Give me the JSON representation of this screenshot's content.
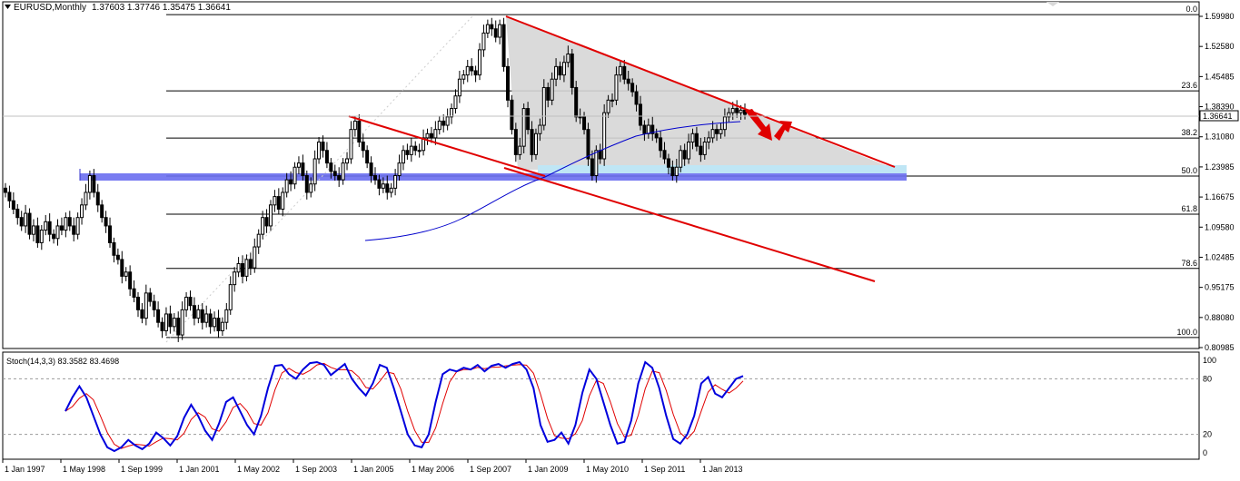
{
  "header": {
    "symbol": "EURUSD,Monthly",
    "ohlc": "1.37603 1.37746 1.35475 1.36641"
  },
  "chart_data": [
    {
      "type": "candlestick",
      "symbol": "EURUSD",
      "timeframe": "Monthly",
      "ylim": [
        0.80985,
        1.5998
      ],
      "current_price": "1.36641",
      "price_ticks": [
        "1.59980",
        "1.52580",
        "1.45485",
        "1.38390",
        "1.31080",
        "1.23985",
        "1.16675",
        "1.09580",
        "1.02485",
        "0.95175",
        "0.88080",
        "0.80985"
      ],
      "time_ticks": [
        "1 Jan 1997",
        "1 May 1998",
        "1 Sep 1999",
        "1 Jan 2001",
        "1 May 2002",
        "1 Sep 2003",
        "1 Jan 2005",
        "1 May 2006",
        "1 Sep 2007",
        "1 Jan 2009",
        "1 May 2010",
        "1 Sep 2011",
        "1 Jan 2013"
      ],
      "fibonacci_levels": [
        {
          "label": "0.0",
          "price": 1.6038
        },
        {
          "label": "23.6",
          "price": 1.422
        },
        {
          "label": "38.2",
          "price": 1.3096
        },
        {
          "label": "50.0",
          "price": 1.2188
        },
        {
          "label": "61.8",
          "price": 1.128
        },
        {
          "label": "78.6",
          "price": 0.9986
        },
        {
          "label": "100.0",
          "price": 0.8338
        }
      ],
      "closes": [
        1.18,
        1.16,
        1.14,
        1.12,
        1.1,
        1.13,
        1.08,
        1.1,
        1.06,
        1.09,
        1.11,
        1.08,
        1.07,
        1.1,
        1.09,
        1.12,
        1.1,
        1.08,
        1.12,
        1.15,
        1.18,
        1.22,
        1.18,
        1.15,
        1.12,
        1.1,
        1.06,
        1.03,
        1.02,
        0.98,
        0.99,
        0.95,
        0.93,
        0.9,
        0.88,
        0.94,
        0.92,
        0.9,
        0.87,
        0.85,
        0.89,
        0.86,
        0.88,
        0.84,
        0.9,
        0.93,
        0.91,
        0.88,
        0.9,
        0.87,
        0.89,
        0.86,
        0.88,
        0.85,
        0.87,
        0.9,
        0.96,
        0.99,
        1.01,
        0.98,
        1.02,
        1.0,
        1.05,
        1.08,
        1.12,
        1.1,
        1.15,
        1.17,
        1.14,
        1.18,
        1.21,
        1.2,
        1.24,
        1.25,
        1.22,
        1.18,
        1.2,
        1.26,
        1.3,
        1.28,
        1.25,
        1.23,
        1.22,
        1.21,
        1.25,
        1.26,
        1.33,
        1.35,
        1.3,
        1.28,
        1.25,
        1.22,
        1.21,
        1.19,
        1.2,
        1.18,
        1.19,
        1.22,
        1.25,
        1.28,
        1.27,
        1.29,
        1.28,
        1.28,
        1.31,
        1.32,
        1.31,
        1.33,
        1.35,
        1.34,
        1.36,
        1.38,
        1.41,
        1.45,
        1.46,
        1.48,
        1.47,
        1.46,
        1.52,
        1.56,
        1.58,
        1.57,
        1.55,
        1.58,
        1.48,
        1.4,
        1.33,
        1.27,
        1.29,
        1.38,
        1.33,
        1.27,
        1.32,
        1.34,
        1.43,
        1.4,
        1.45,
        1.48,
        1.46,
        1.49,
        1.51,
        1.43,
        1.36,
        1.36,
        1.33,
        1.26,
        1.22,
        1.28,
        1.26,
        1.37,
        1.4,
        1.4,
        1.46,
        1.48,
        1.45,
        1.44,
        1.42,
        1.39,
        1.34,
        1.32,
        1.34,
        1.32,
        1.31,
        1.28,
        1.26,
        1.24,
        1.22,
        1.24,
        1.28,
        1.26,
        1.3,
        1.32,
        1.29,
        1.27,
        1.3,
        1.31,
        1.33,
        1.32,
        1.33,
        1.36,
        1.37,
        1.38,
        1.37,
        1.376,
        1.366
      ]
    },
    {
      "type": "line",
      "title": "Stoch(14,3,3) 83.3582 83.4698",
      "ylim": [
        0,
        100
      ],
      "levels": [
        "100",
        "80",
        "20",
        "0"
      ]
    }
  ]
}
